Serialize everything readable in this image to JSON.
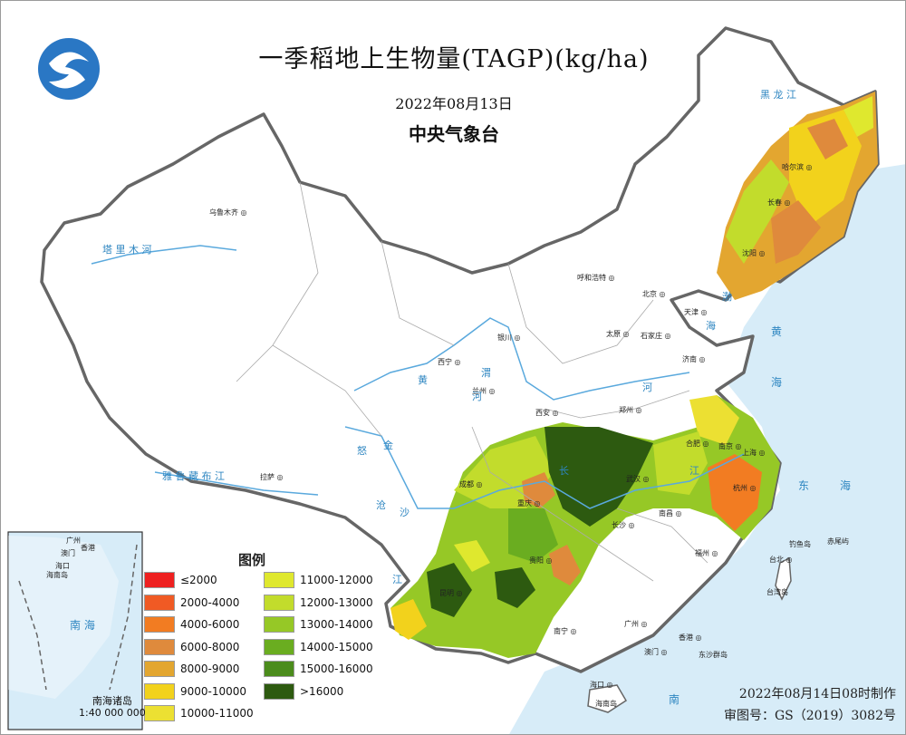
{
  "header": {
    "title": "一季稻地上生物量(TAGP)(kg/ha)",
    "date": "2022年08月13日",
    "agency": "中央气象台"
  },
  "legend": {
    "title": "图例",
    "items": [
      {
        "label": "≤2000",
        "color": "#ee2020"
      },
      {
        "label": "2000-4000",
        "color": "#f05a24"
      },
      {
        "label": "4000-6000",
        "color": "#f27c22"
      },
      {
        "label": "6000-8000",
        "color": "#df8a3c"
      },
      {
        "label": "8000-9000",
        "color": "#e3a630"
      },
      {
        "label": "9000-10000",
        "color": "#f2d21c"
      },
      {
        "label": "10000-11000",
        "color": "#ece032"
      },
      {
        "label": "11000-12000",
        "color": "#dfe82e"
      },
      {
        "label": "12000-13000",
        "color": "#c2dc2c"
      },
      {
        "label": "13000-14000",
        "color": "#96c826"
      },
      {
        "label": "14000-15000",
        "color": "#6aad20"
      },
      {
        "label": "15000-16000",
        "color": "#4b8c1c"
      },
      {
        "label": ">16000",
        "color": "#2d5a10"
      }
    ]
  },
  "footer": {
    "made": "2022年08月14日08时制作",
    "approval": "审图号：GS（2019）3082号"
  },
  "inset": {
    "name": "南海诸岛",
    "scale": "1:40 000 000",
    "places": [
      "广州",
      "香港",
      "澳门",
      "海口",
      "海南岛"
    ],
    "sea_label": "南 海"
  },
  "cities": [
    {
      "name": "乌鲁木齐"
    },
    {
      "name": "哈尔滨"
    },
    {
      "name": "长春"
    },
    {
      "name": "沈阳"
    },
    {
      "name": "呼和浩特"
    },
    {
      "name": "北京"
    },
    {
      "name": "天津"
    },
    {
      "name": "石家庄"
    },
    {
      "name": "太原"
    },
    {
      "name": "济南"
    },
    {
      "name": "银川"
    },
    {
      "name": "西宁"
    },
    {
      "name": "兰州"
    },
    {
      "name": "西安"
    },
    {
      "name": "郑州"
    },
    {
      "name": "合肥"
    },
    {
      "name": "南京"
    },
    {
      "name": "上海"
    },
    {
      "name": "杭州"
    },
    {
      "name": "武汉"
    },
    {
      "name": "成都"
    },
    {
      "name": "重庆"
    },
    {
      "name": "长沙"
    },
    {
      "name": "南昌"
    },
    {
      "name": "福州"
    },
    {
      "name": "台北"
    },
    {
      "name": "贵阳"
    },
    {
      "name": "昆明"
    },
    {
      "name": "南宁"
    },
    {
      "name": "广州"
    },
    {
      "name": "香港"
    },
    {
      "name": "澳门"
    },
    {
      "name": "海口"
    },
    {
      "name": "拉萨"
    }
  ],
  "map_labels": {
    "tarim": "塔 里 木 河",
    "yarlung": "雅 鲁 藏 布 江",
    "yellow_river": "黄",
    "huai": "河",
    "bohai": "渤",
    "bohai2": "海",
    "huanghai": "黄",
    "huanghai2": "海",
    "donghai": "东",
    "donghai2": "海",
    "nan": "南",
    "heilongjiang": "黑 龙 江",
    "chiwei": "赤尾屿",
    "diaoyu": "钓鱼岛",
    "taiwan": "台湾岛",
    "dongsha": "东沙群岛",
    "hainan": "海南岛",
    "changjiang": "长",
    "jiang": "江",
    "jinsha": "金",
    "lancang": "沧",
    "nujiang": "怒",
    "sha": "沙",
    "gongshan": "江",
    "weihe": "渭",
    "he": "河"
  }
}
